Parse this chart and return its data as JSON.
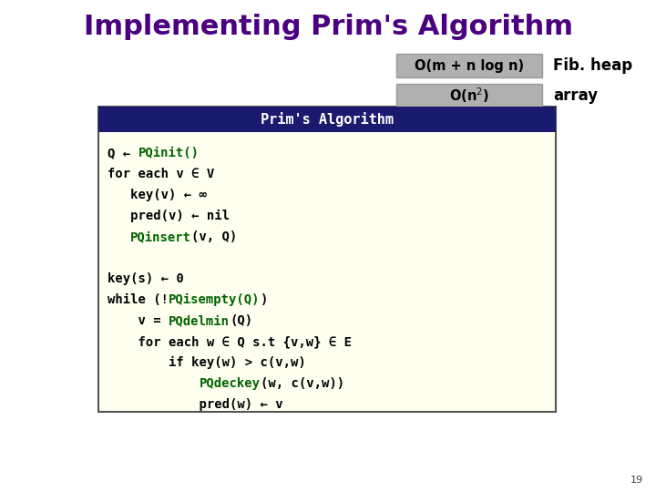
{
  "title": "Implementing Prim's Algorithm",
  "title_color": "#4B0082",
  "title_fontsize": 22,
  "box_header_text": "Prim's Algorithm",
  "box_header_bg": "#1a1a6e",
  "box_header_text_color": "#ffffff",
  "box_bg": "#fffff0",
  "box_border_color": "#555555",
  "complexity_box1_text": "O(m + n log n)",
  "complexity_box1_bg": "#b0b0b0",
  "complexity_label1": "Fib. heap",
  "complexity_box2_bg": "#b0b0b0",
  "complexity_label2": "array",
  "complexity_text_color": "#000000",
  "page_number": "19",
  "bg_color": "#ffffff"
}
